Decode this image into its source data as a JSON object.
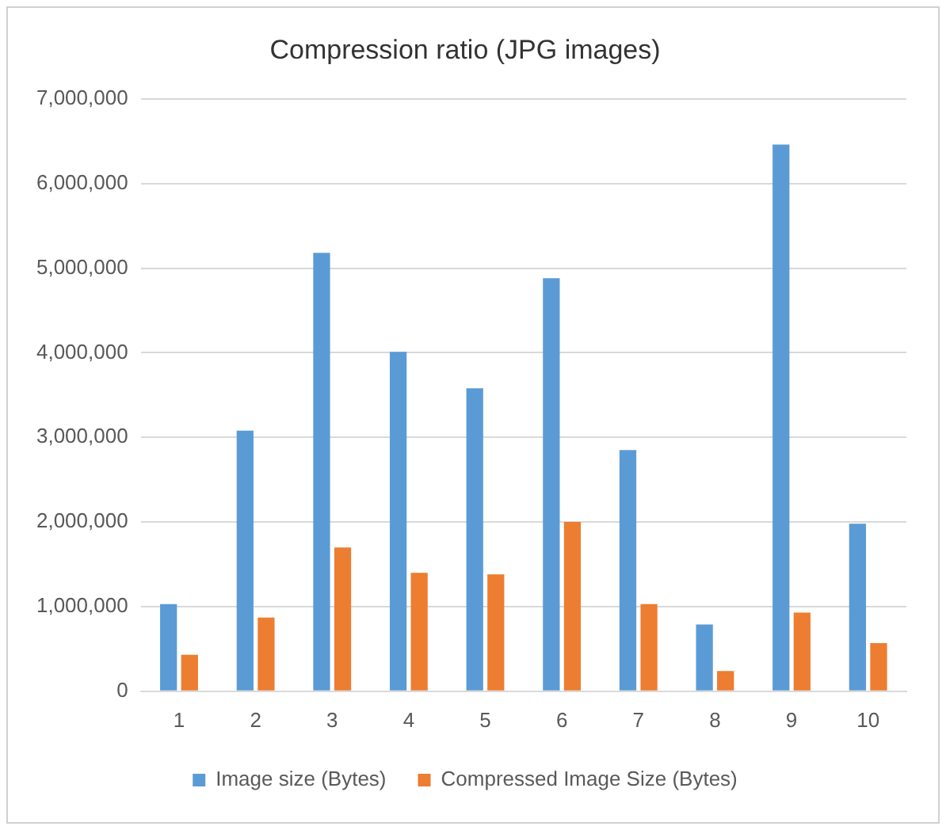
{
  "chart_data": {
    "type": "bar",
    "title": "Compression ratio (JPG images)",
    "categories": [
      "1",
      "2",
      "3",
      "4",
      "5",
      "6",
      "7",
      "8",
      "9",
      "10"
    ],
    "series": [
      {
        "name": "Image size (Bytes)",
        "color": "#5b9bd5",
        "values": [
          1030000,
          3080000,
          5180000,
          4010000,
          3580000,
          4880000,
          2850000,
          790000,
          6460000,
          1980000
        ]
      },
      {
        "name": "Compressed Image Size (Bytes)",
        "color": "#ed7d31",
        "values": [
          430000,
          870000,
          1700000,
          1400000,
          1380000,
          2000000,
          1030000,
          240000,
          930000,
          570000
        ]
      }
    ],
    "ylim": [
      0,
      7000000
    ],
    "yticks": [
      0,
      {
        "value": 1000000,
        "label": "1,000,000"
      },
      {
        "value": 2000000,
        "label": "2,000,000"
      },
      {
        "value": 3000000,
        "label": "3,000,000"
      },
      {
        "value": 4000000,
        "label": "4,000,000"
      },
      {
        "value": 5000000,
        "label": "5,000,000"
      },
      {
        "value": 6000000,
        "label": "6,000,000"
      },
      {
        "value": 7000000,
        "label": "7,000,000"
      }
    ],
    "grid": "y",
    "legend": "bottom"
  }
}
